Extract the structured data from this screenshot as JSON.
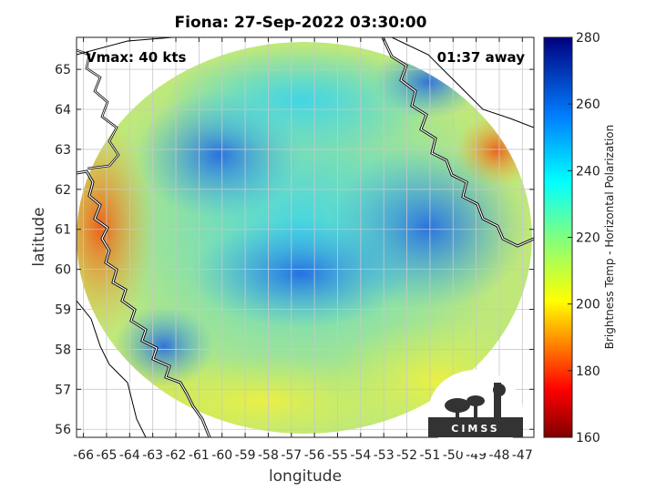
{
  "title": "Fiona: 27-Sep-2022 03:30:00",
  "overlay": {
    "vmax": "Vmax: 40 kts",
    "time_away": "01:37 away"
  },
  "axes": {
    "xlabel": "longitude",
    "ylabel": "latitude",
    "x_range": [
      -66.3,
      -46.5
    ],
    "y_range": [
      55.8,
      65.8
    ],
    "x_ticks": [
      "-66",
      "-65",
      "-64",
      "-63",
      "-62",
      "-61",
      "-60",
      "-59",
      "-58",
      "-57",
      "-56",
      "-55",
      "-54",
      "-53",
      "-52",
      "-51",
      "-50",
      "-49",
      "-48",
      "-47"
    ],
    "y_ticks": [
      "56",
      "57",
      "58",
      "59",
      "60",
      "61",
      "62",
      "63",
      "64",
      "65"
    ],
    "grid": true
  },
  "colorbar": {
    "label": "Brightness Temp - Horizontal Polarization",
    "min": 160,
    "max": 280,
    "ticks": [
      "160",
      "180",
      "200",
      "220",
      "240",
      "260",
      "280"
    ],
    "colormap": "jet"
  },
  "logo": {
    "text": "CIMSS"
  },
  "colors": {
    "scene_cold": "#1a5ee8",
    "scene_mid": "#2fc8ee",
    "scene_warm": "#e4ee3a",
    "scene_hot": "#ee6a18"
  }
}
